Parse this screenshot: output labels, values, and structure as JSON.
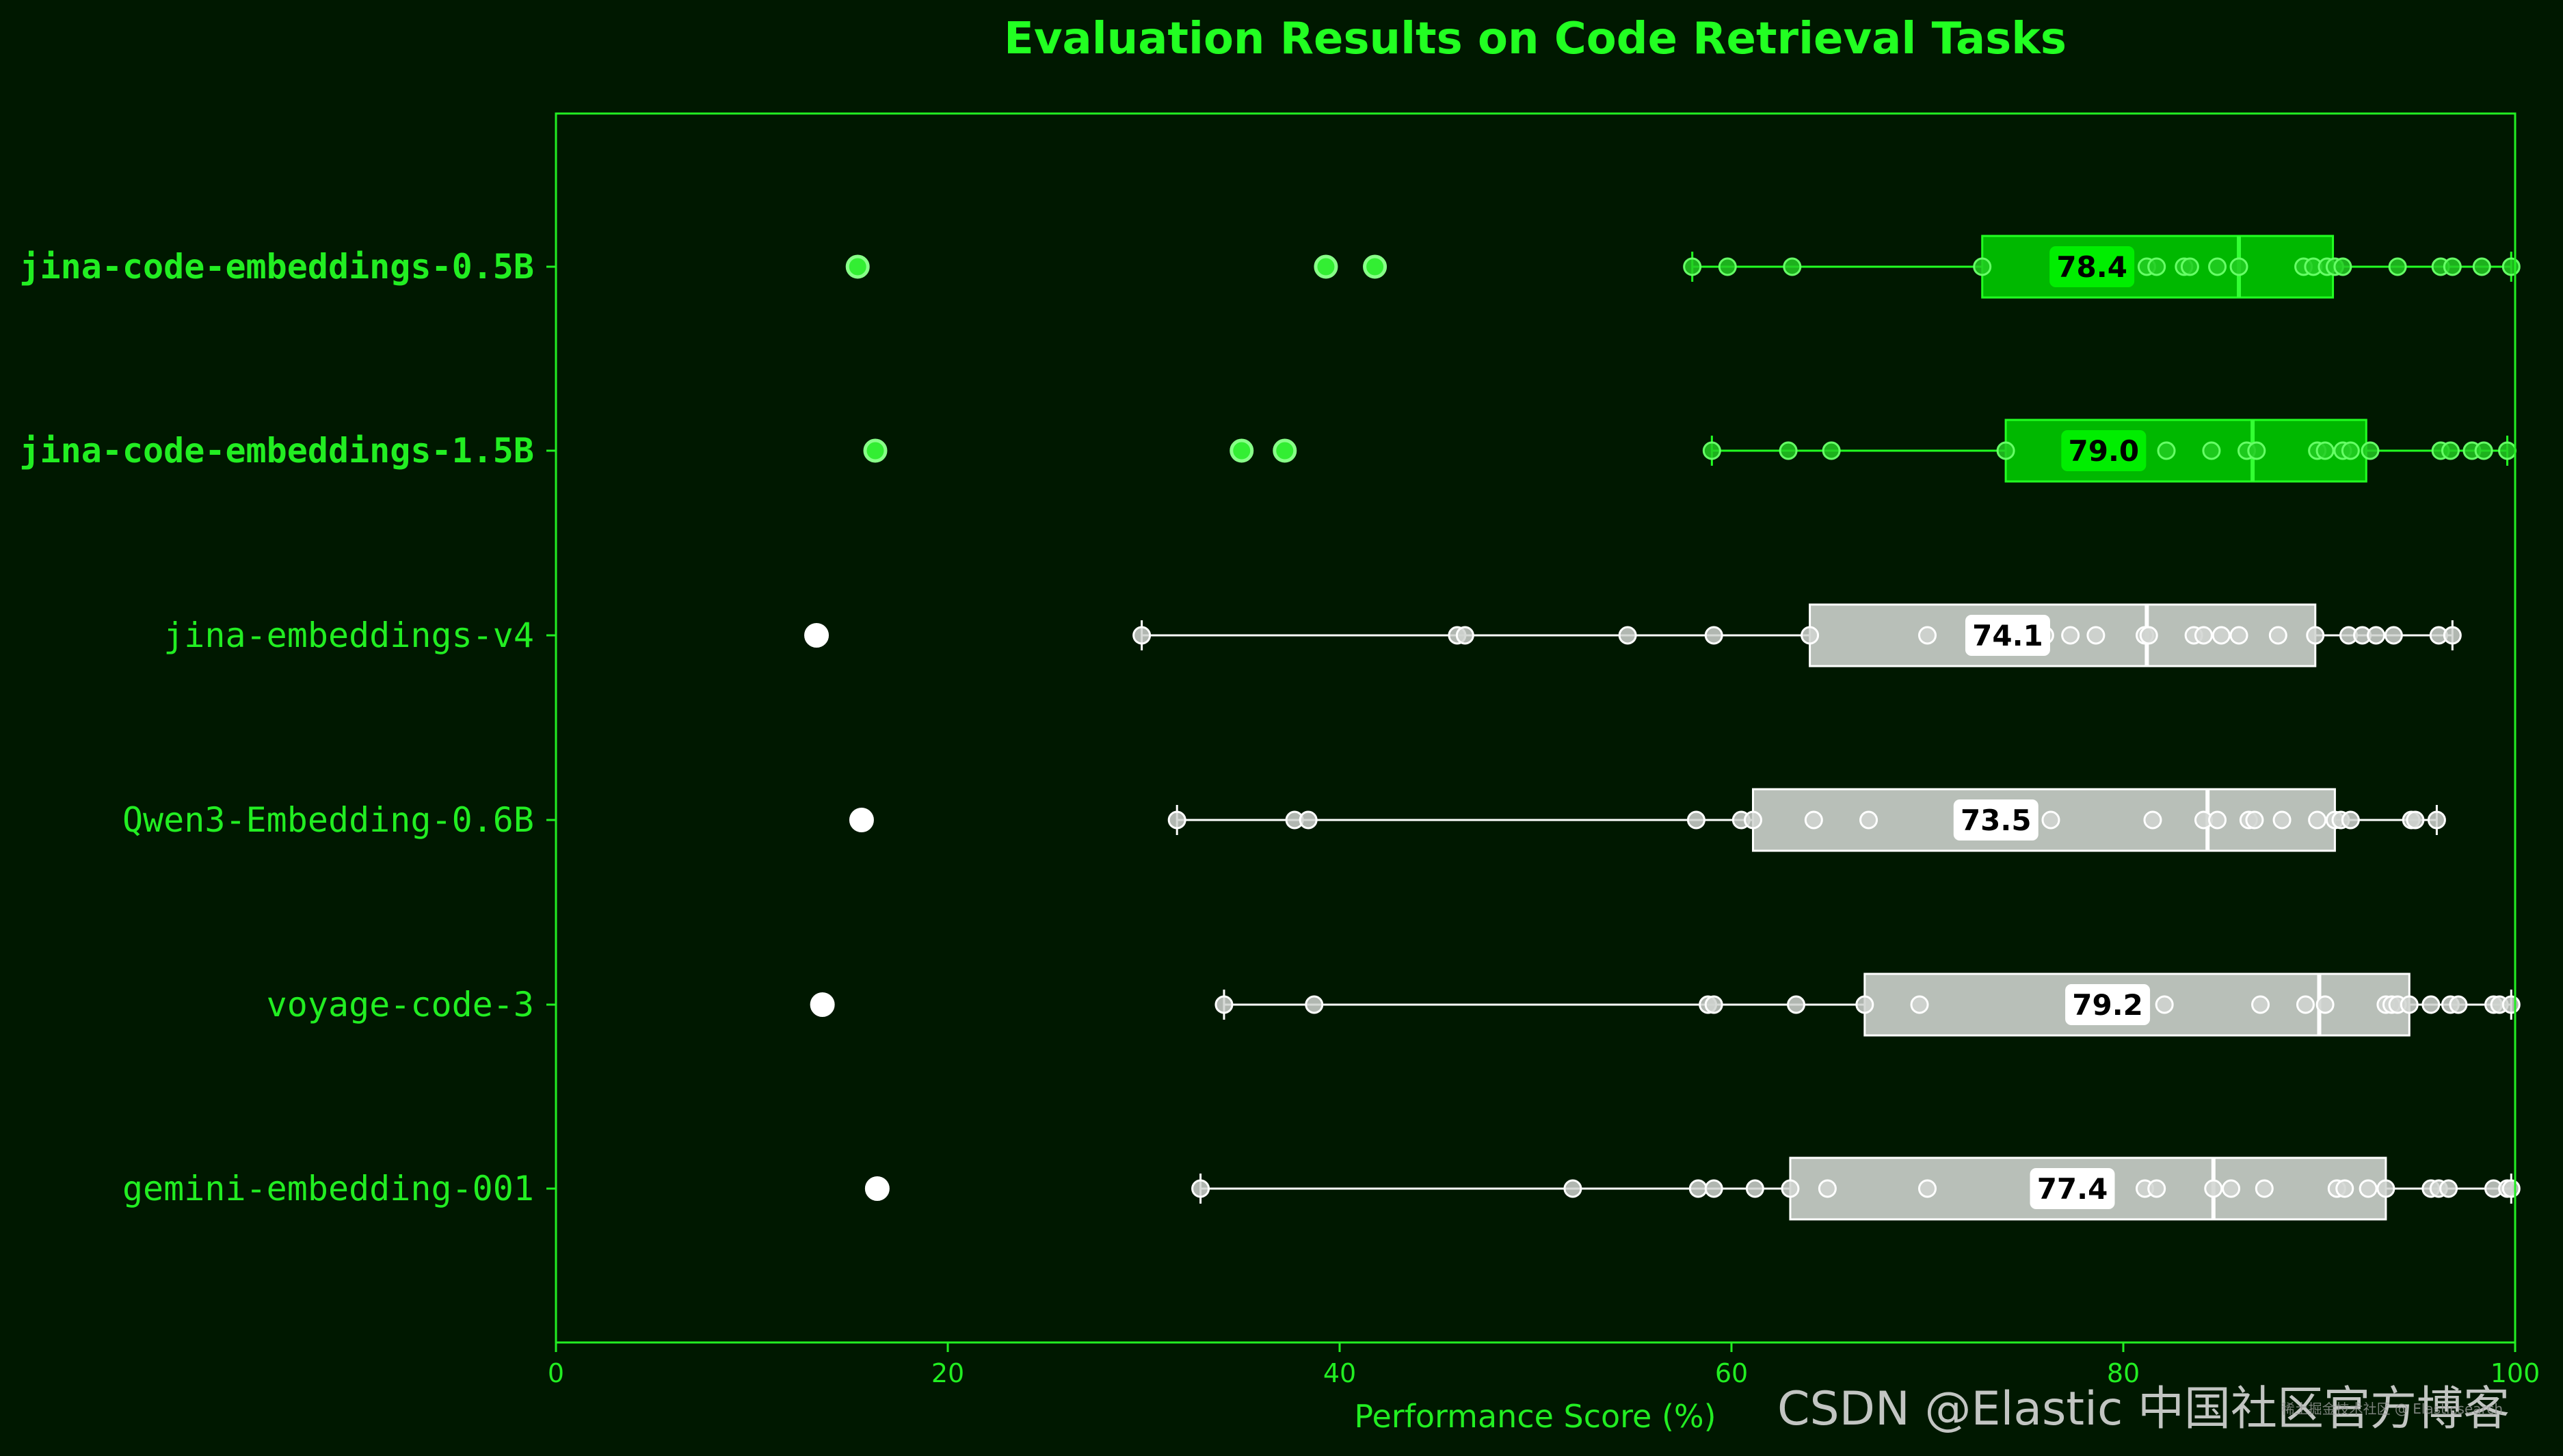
{
  "colors": {
    "background": "#001800",
    "accent": "#22ee22",
    "highlight_box": "#00b800",
    "highlight_edge": "#22ff22",
    "baseline_box": "#b8bfb8",
    "baseline_edge": "#ffffff"
  },
  "chart_data": {
    "type": "boxplot",
    "orientation": "horizontal",
    "title": "Evaluation Results on Code Retrieval Tasks",
    "xlabel": "Performance Score (%)",
    "ylabel": "",
    "xlim": [
      0,
      100
    ],
    "xticks": [
      0,
      20,
      40,
      60,
      80,
      100
    ],
    "grid": false,
    "series": [
      {
        "name": "jina-code-embeddings-0.5B",
        "highlight": true,
        "mean_label": "78.4",
        "whisker_low": 58,
        "q1": 72.8,
        "median": 85.9,
        "q3": 90.7,
        "whisker_high": 99.8,
        "outliers": [
          15.4,
          39.3,
          41.8
        ],
        "points": [
          58,
          59.8,
          63.1,
          72.8,
          81.2,
          81.7,
          83.1,
          83.4,
          84.8,
          85.9,
          89.2,
          89.7,
          90.4,
          90.8,
          91.2,
          94,
          96.2,
          96.8,
          98.3,
          99.8
        ]
      },
      {
        "name": "jina-code-embeddings-1.5B",
        "highlight": true,
        "mean_label": "79.0",
        "whisker_low": 59,
        "q1": 74,
        "median": 86.6,
        "q3": 92.4,
        "whisker_high": 99.6,
        "outliers": [
          16.3,
          35,
          37.2
        ],
        "points": [
          59,
          62.9,
          65.1,
          74,
          82.2,
          84.5,
          86.3,
          86.8,
          89.9,
          90.3,
          91.2,
          91.6,
          92.6,
          96.2,
          96.7,
          97.8,
          98.4,
          99.6
        ]
      },
      {
        "name": "jina-embeddings-v4",
        "highlight": false,
        "mean_label": "74.1",
        "whisker_low": 29.9,
        "q1": 64,
        "median": 81.2,
        "q3": 89.8,
        "whisker_high": 96.8,
        "outliers": [
          13.3
        ],
        "points": [
          29.9,
          46,
          46.4,
          54.7,
          59.1,
          64,
          70,
          76,
          77.3,
          78.6,
          81.1,
          81.3,
          83.6,
          84.1,
          85,
          85.9,
          87.9,
          89.8,
          91.5,
          92.2,
          92.9,
          93.8,
          96.1,
          96.8
        ]
      },
      {
        "name": "Qwen3-Embedding-0.6B",
        "highlight": false,
        "mean_label": "73.5",
        "whisker_low": 31.7,
        "q1": 61.1,
        "median": 84.3,
        "q3": 90.8,
        "whisker_high": 96,
        "outliers": [
          15.6
        ],
        "points": [
          31.7,
          37.7,
          38.4,
          58.2,
          60.5,
          61.1,
          64.2,
          67,
          76.3,
          81.5,
          84.1,
          84.8,
          86.4,
          86.7,
          88.1,
          89.9,
          90.8,
          91.1,
          91.6,
          94.7,
          94.9,
          96
        ]
      },
      {
        "name": "voyage-code-3",
        "highlight": false,
        "mean_label": "79.2",
        "whisker_low": 34.1,
        "q1": 66.8,
        "median": 90,
        "q3": 94.6,
        "whisker_high": 99.8,
        "outliers": [
          13.6
        ],
        "points": [
          34.1,
          38.7,
          58.8,
          59.1,
          63.3,
          66.8,
          69.6,
          82.1,
          87,
          89.3,
          90.3,
          93.4,
          93.7,
          94,
          94.6,
          95.7,
          96.7,
          97.1,
          98.9,
          99.2,
          99.8
        ]
      },
      {
        "name": "gemini-embedding-001",
        "highlight": false,
        "mean_label": "77.4",
        "whisker_low": 32.9,
        "q1": 63,
        "median": 84.6,
        "q3": 93.4,
        "whisker_high": 99.8,
        "outliers": [
          16.4
        ],
        "points": [
          32.9,
          51.9,
          58.3,
          59.1,
          61.2,
          63,
          64.9,
          70,
          81.1,
          81.7,
          84.6,
          85.5,
          87.2,
          90.9,
          91.3,
          92.5,
          93.4,
          95.7,
          96.1,
          96.6,
          98.9,
          99.6,
          99.8
        ]
      }
    ]
  },
  "watermark": {
    "main": "CSDN @Elastic 中国社区官方博客",
    "small": "稀土掘金技术社区 @ Elasticsearch"
  }
}
